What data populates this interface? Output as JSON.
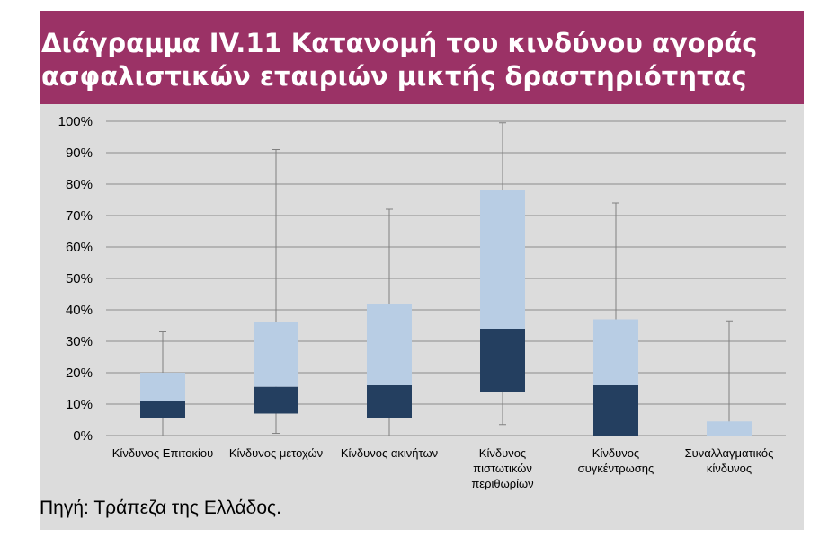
{
  "title": {
    "line1": "Διάγραμμα IV.11 Κατανομή του κινδύνου αγοράς",
    "line2": "ασφαλιστικών εταιριών μικτής δραστηριότητας"
  },
  "source": "Πηγή: Τράπεζα της Ελλάδος.",
  "colors": {
    "title_background": "#9b3266",
    "panel_background": "#dcdcdc",
    "upper_box": "#b8cde4",
    "lower_box": "#243f60",
    "whisker": "#808080",
    "grid": "#8c8c8c"
  },
  "chart_data": {
    "type": "box",
    "ylim": [
      0,
      100
    ],
    "y_unit": "%",
    "y_ticks": [
      "0%",
      "10%",
      "20%",
      "30%",
      "40%",
      "50%",
      "60%",
      "70%",
      "80%",
      "90%",
      "100%"
    ],
    "grid": true,
    "categories": [
      [
        "Κίνδυνος Επιτοκίου"
      ],
      [
        "Κίνδυνος μετοχών"
      ],
      [
        "Κίνδυνος ακινήτων"
      ],
      [
        "Κίνδυνος",
        "πιστωτικών",
        "περιθωρίων"
      ],
      [
        "Κίνδυνος",
        "συγκέντρωσης"
      ],
      [
        "Συναλλαγματικός",
        "κίνδυνος"
      ]
    ],
    "boxes": [
      {
        "min": 0,
        "q1": 5.5,
        "median": 11,
        "q3": 20,
        "max": 33
      },
      {
        "min": 0.7,
        "q1": 7,
        "median": 15.5,
        "q3": 36,
        "max": 91
      },
      {
        "min": 0,
        "q1": 5.5,
        "median": 16,
        "q3": 42,
        "max": 72
      },
      {
        "min": 3.5,
        "q1": 14,
        "median": 34,
        "q3": 78,
        "max": 99.5
      },
      {
        "min": 0,
        "q1": 0,
        "median": 16,
        "q3": 37,
        "max": 74
      },
      {
        "min": 0,
        "q1": 0,
        "median": 0,
        "q3": 4.5,
        "max": 36.5
      }
    ]
  }
}
